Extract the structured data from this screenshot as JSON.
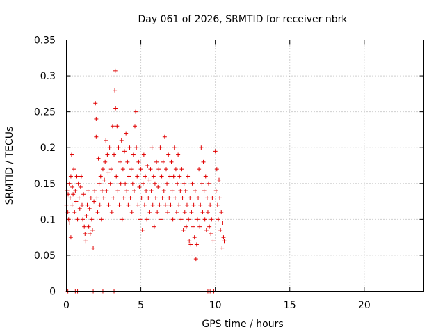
{
  "chart_data": {
    "type": "scatter",
    "title": "Day 061 of 2026, SRMTID for receiver nbrk",
    "xlabel": "GPS time / hours",
    "ylabel": "SRMTID / TECUs",
    "xlim": [
      0,
      24
    ],
    "ylim": [
      0,
      0.35
    ],
    "xticks": [
      0,
      5,
      10,
      15,
      20
    ],
    "yticks": [
      0,
      0.05,
      0.1,
      0.15,
      0.2,
      0.25,
      0.3,
      0.35
    ],
    "ytick_labels": [
      "0",
      "0.05",
      "0.1",
      "0.15",
      "0.2",
      "0.25",
      "0.3",
      "0.35"
    ],
    "xtick_labels": [
      "0",
      "5",
      "10",
      "15",
      "20"
    ],
    "grid": true,
    "marker": "plus",
    "color": "#e00000",
    "series": [
      {
        "points": [
          [
            0.0,
            0.12
          ],
          [
            0.05,
            0.14
          ],
          [
            0.1,
            0.11
          ],
          [
            0.12,
            0.135
          ],
          [
            0.15,
            0.1
          ],
          [
            0.2,
            0.15
          ],
          [
            0.22,
            0.095
          ],
          [
            0.25,
            0.13
          ],
          [
            0.3,
            0.075
          ],
          [
            0.3,
            0.16
          ],
          [
            0.35,
            0.19
          ],
          [
            0.38,
            0.12
          ],
          [
            0.4,
            0.145
          ],
          [
            0.45,
            0.135
          ],
          [
            0.5,
            0.17
          ],
          [
            0.55,
            0.11
          ],
          [
            0.6,
            0.14
          ],
          [
            0.65,
            0.125
          ],
          [
            0.7,
            0.16
          ],
          [
            0.75,
            0.1
          ],
          [
            0.8,
            0.15
          ],
          [
            0.85,
            0.13
          ],
          [
            0.9,
            0.115
          ],
          [
            0.95,
            0.145
          ],
          [
            1.0,
            0.16
          ],
          [
            1.05,
            0.12
          ],
          [
            1.1,
            0.1
          ],
          [
            1.15,
            0.135
          ],
          [
            1.2,
            0.09
          ],
          [
            1.25,
            0.08
          ],
          [
            1.3,
            0.07
          ],
          [
            1.35,
            0.105
          ],
          [
            1.4,
            0.12
          ],
          [
            1.45,
            0.14
          ],
          [
            1.5,
            0.09
          ],
          [
            1.55,
            0.115
          ],
          [
            1.6,
            0.08
          ],
          [
            1.65,
            0.13
          ],
          [
            1.7,
            0.1
          ],
          [
            1.75,
            0.085
          ],
          [
            1.8,
            0.06
          ],
          [
            1.85,
            0.125
          ],
          [
            1.9,
            0.14
          ],
          [
            1.95,
            0.262
          ],
          [
            2.0,
            0.24
          ],
          [
            2.0,
            0.215
          ],
          [
            2.05,
            0.13
          ],
          [
            2.1,
            0.11
          ],
          [
            2.15,
            0.185
          ],
          [
            2.2,
            0.15
          ],
          [
            2.25,
            0.12
          ],
          [
            2.3,
            0.16
          ],
          [
            2.35,
            0.1
          ],
          [
            2.4,
            0.14
          ],
          [
            2.45,
            0.17
          ],
          [
            2.5,
            0.13
          ],
          [
            2.55,
            0.155
          ],
          [
            2.6,
            0.18
          ],
          [
            2.65,
            0.21
          ],
          [
            2.7,
            0.14
          ],
          [
            2.75,
            0.19
          ],
          [
            2.8,
            0.165
          ],
          [
            2.85,
            0.12
          ],
          [
            2.9,
            0.2
          ],
          [
            2.95,
            0.15
          ],
          [
            3.0,
            0.17
          ],
          [
            3.05,
            0.11
          ],
          [
            3.1,
            0.23
          ],
          [
            3.15,
            0.13
          ],
          [
            3.2,
            0.19
          ],
          [
            3.25,
            0.28
          ],
          [
            3.28,
            0.307
          ],
          [
            3.3,
            0.255
          ],
          [
            3.35,
            0.16
          ],
          [
            3.4,
            0.23
          ],
          [
            3.45,
            0.14
          ],
          [
            3.5,
            0.2
          ],
          [
            3.55,
            0.12
          ],
          [
            3.6,
            0.18
          ],
          [
            3.65,
            0.15
          ],
          [
            3.7,
            0.21
          ],
          [
            3.75,
            0.1
          ],
          [
            3.8,
            0.17
          ],
          [
            3.85,
            0.13
          ],
          [
            3.9,
            0.195
          ],
          [
            3.95,
            0.15
          ],
          [
            4.0,
            0.22
          ],
          [
            4.05,
            0.14
          ],
          [
            4.1,
            0.18
          ],
          [
            4.15,
            0.12
          ],
          [
            4.2,
            0.16
          ],
          [
            4.25,
            0.2
          ],
          [
            4.3,
            0.13
          ],
          [
            4.35,
            0.17
          ],
          [
            4.4,
            0.11
          ],
          [
            4.45,
            0.15
          ],
          [
            4.5,
            0.19
          ],
          [
            4.55,
            0.14
          ],
          [
            4.6,
            0.23
          ],
          [
            4.65,
            0.25
          ],
          [
            4.7,
            0.2
          ],
          [
            4.75,
            0.16
          ],
          [
            4.8,
            0.12
          ],
          [
            4.85,
            0.18
          ],
          [
            4.9,
            0.145
          ],
          [
            4.95,
            0.1
          ],
          [
            5.0,
            0.17
          ],
          [
            5.05,
            0.13
          ],
          [
            5.1,
            0.085
          ],
          [
            5.15,
            0.15
          ],
          [
            5.2,
            0.19
          ],
          [
            5.25,
            0.12
          ],
          [
            5.3,
            0.16
          ],
          [
            5.35,
            0.14
          ],
          [
            5.4,
            0.1
          ],
          [
            5.45,
            0.175
          ],
          [
            5.5,
            0.13
          ],
          [
            5.55,
            0.155
          ],
          [
            5.6,
            0.11
          ],
          [
            5.65,
            0.17
          ],
          [
            5.7,
            0.14
          ],
          [
            5.75,
            0.2
          ],
          [
            5.8,
            0.12
          ],
          [
            5.85,
            0.16
          ],
          [
            5.9,
            0.09
          ],
          [
            5.95,
            0.15
          ],
          [
            6.0,
            0.13
          ],
          [
            6.05,
            0.18
          ],
          [
            6.1,
            0.11
          ],
          [
            6.15,
            0.145
          ],
          [
            6.2,
            0.17
          ],
          [
            6.25,
            0.12
          ],
          [
            6.3,
            0.2
          ],
          [
            6.35,
            0.1
          ],
          [
            6.4,
            0.16
          ],
          [
            6.45,
            0.13
          ],
          [
            6.5,
            0.18
          ],
          [
            6.55,
            0.14
          ],
          [
            6.6,
            0.215
          ],
          [
            6.65,
            0.12
          ],
          [
            6.7,
            0.17
          ],
          [
            6.75,
            0.15
          ],
          [
            6.8,
            0.11
          ],
          [
            6.85,
            0.19
          ],
          [
            6.9,
            0.13
          ],
          [
            6.95,
            0.16
          ],
          [
            7.0,
            0.12
          ],
          [
            7.05,
            0.18
          ],
          [
            7.1,
            0.14
          ],
          [
            7.15,
            0.1
          ],
          [
            7.2,
            0.16
          ],
          [
            7.25,
            0.2
          ],
          [
            7.3,
            0.13
          ],
          [
            7.35,
            0.17
          ],
          [
            7.4,
            0.11
          ],
          [
            7.45,
            0.15
          ],
          [
            7.5,
            0.19
          ],
          [
            7.55,
            0.12
          ],
          [
            7.6,
            0.16
          ],
          [
            7.65,
            0.14
          ],
          [
            7.7,
            0.1
          ],
          [
            7.75,
            0.17
          ],
          [
            7.8,
            0.13
          ],
          [
            7.85,
            0.085
          ],
          [
            7.9,
            0.15
          ],
          [
            7.95,
            0.11
          ],
          [
            8.0,
            0.14
          ],
          [
            8.05,
            0.09
          ],
          [
            8.1,
            0.12
          ],
          [
            8.15,
            0.16
          ],
          [
            8.2,
            0.1
          ],
          [
            8.25,
            0.07
          ],
          [
            8.3,
            0.13
          ],
          [
            8.35,
            0.065
          ],
          [
            8.4,
            0.11
          ],
          [
            8.45,
            0.15
          ],
          [
            8.5,
            0.09
          ],
          [
            8.55,
            0.12
          ],
          [
            8.6,
            0.075
          ],
          [
            8.65,
            0.14
          ],
          [
            8.7,
            0.045
          ],
          [
            8.75,
            0.065
          ],
          [
            8.8,
            0.1
          ],
          [
            8.85,
            0.13
          ],
          [
            8.9,
            0.17
          ],
          [
            8.95,
            0.09
          ],
          [
            9.0,
            0.12
          ],
          [
            9.05,
            0.2
          ],
          [
            9.1,
            0.15
          ],
          [
            9.15,
            0.11
          ],
          [
            9.2,
            0.18
          ],
          [
            9.25,
            0.14
          ],
          [
            9.3,
            0.1
          ],
          [
            9.35,
            0.16
          ],
          [
            9.4,
            0.085
          ],
          [
            9.45,
            0.13
          ],
          [
            9.5,
            0.11
          ],
          [
            9.55,
            0.15
          ],
          [
            9.6,
            0.09
          ],
          [
            9.65,
            0.12
          ],
          [
            9.7,
            0.08
          ],
          [
            9.75,
            0.1
          ],
          [
            9.8,
            0.13
          ],
          [
            9.85,
            0.07
          ],
          [
            10.0,
            0.195
          ],
          [
            10.05,
            0.14
          ],
          [
            10.1,
            0.17
          ],
          [
            10.15,
            0.12
          ],
          [
            10.2,
            0.1
          ],
          [
            10.25,
            0.155
          ],
          [
            10.3,
            0.13
          ],
          [
            10.35,
            0.085
          ],
          [
            10.4,
            0.11
          ],
          [
            10.45,
            0.06
          ],
          [
            10.5,
            0.095
          ],
          [
            10.55,
            0.075
          ],
          [
            10.6,
            0.07
          ],
          [
            0.1,
            0.0
          ],
          [
            0.6,
            0.0
          ],
          [
            0.75,
            0.0
          ],
          [
            1.8,
            0.0
          ],
          [
            2.45,
            0.0
          ],
          [
            3.2,
            0.0
          ],
          [
            6.35,
            0.0
          ],
          [
            9.5,
            0.0
          ],
          [
            9.65,
            0.0
          ],
          [
            9.9,
            0.0
          ]
        ]
      }
    ]
  }
}
